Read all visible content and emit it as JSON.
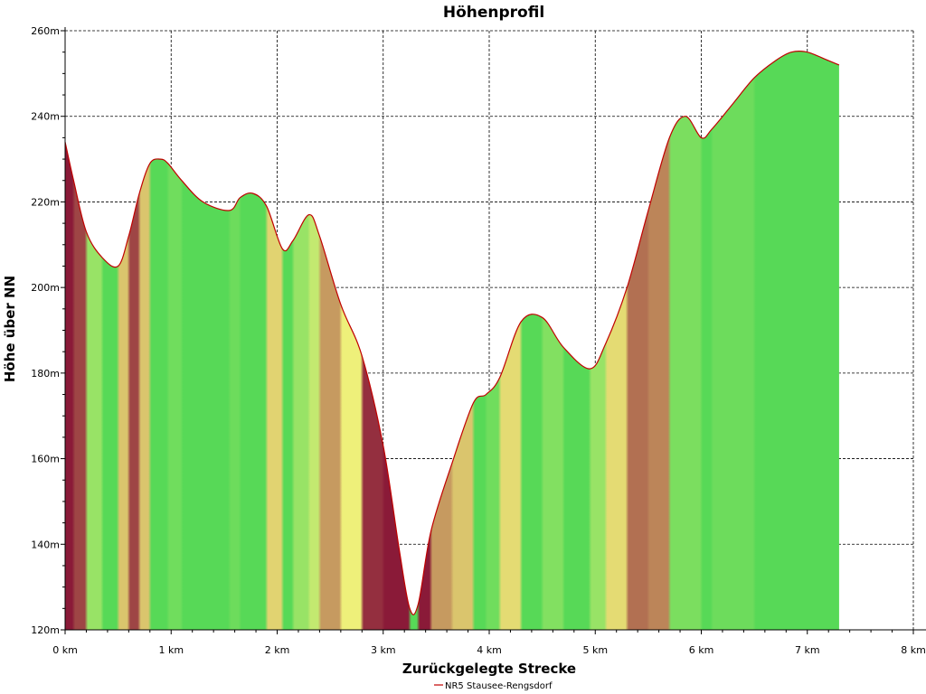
{
  "chart_data": {
    "type": "area",
    "title": "Höhenprofil",
    "xlabel": "Zurückgelegte Strecke",
    "ylabel": "Höhe über NN",
    "xlim": [
      0,
      8
    ],
    "ylim": [
      120,
      260
    ],
    "x_ticks": [
      "0 km",
      "1 km",
      "2 km",
      "3 km",
      "4 km",
      "5 km",
      "6 km",
      "7 km",
      "8 km"
    ],
    "y_ticks": [
      "120m",
      "140m",
      "160m",
      "180m",
      "200m",
      "220m",
      "240m",
      "260m"
    ],
    "grid": true,
    "legend_position": "bottom-center",
    "colors": {
      "line": "#c00000",
      "flat": "#57d957",
      "moderate": "#eef07a",
      "steep": "#8a1a38"
    },
    "series": [
      {
        "name": "NR5 Stausee-Rengsdorf",
        "x": [
          0.0,
          0.08,
          0.2,
          0.35,
          0.5,
          0.6,
          0.7,
          0.8,
          0.9,
          0.97,
          1.1,
          1.3,
          1.55,
          1.65,
          1.77,
          1.9,
          2.05,
          2.15,
          2.3,
          2.4,
          2.6,
          2.8,
          3.0,
          3.15,
          3.25,
          3.33,
          3.45,
          3.65,
          3.85,
          3.97,
          4.1,
          4.3,
          4.5,
          4.7,
          4.95,
          5.1,
          5.3,
          5.5,
          5.7,
          5.85,
          6.0,
          6.1,
          6.3,
          6.5,
          6.7,
          6.85,
          7.0,
          7.2,
          7.3
        ],
        "y": [
          234,
          225,
          213,
          207,
          205,
          212,
          222,
          229,
          230,
          229,
          225,
          220,
          218,
          221,
          222,
          219,
          209,
          211,
          217,
          212,
          196,
          184,
          163,
          139,
          125,
          126,
          143,
          159,
          173,
          175,
          179,
          192,
          193,
          186,
          181,
          187,
          200,
          218,
          235,
          240,
          235,
          237,
          243,
          249,
          253,
          255,
          255,
          253,
          252
        ]
      }
    ]
  }
}
